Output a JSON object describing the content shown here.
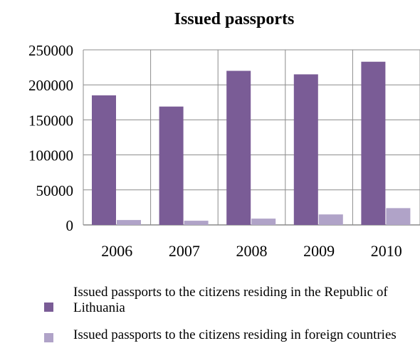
{
  "chart_data": {
    "type": "bar",
    "title": "Issued passports",
    "categories": [
      "2006",
      "2007",
      "2008",
      "2009",
      "2010"
    ],
    "series": [
      {
        "name": "Issued passports to the citizens residing in the Republic of Lithuania",
        "color": "#7a5c96",
        "values": [
          185000,
          169000,
          220000,
          215000,
          233000
        ]
      },
      {
        "name": "Issued passports to the citizens residing in foreign countries",
        "color": "#b0a3c8",
        "values": [
          7000,
          6000,
          9000,
          15000,
          24000
        ]
      }
    ],
    "y_ticks": [
      "0",
      "50000",
      "100000",
      "150000",
      "200000",
      "250000"
    ],
    "ylim": [
      0,
      250000
    ],
    "grid": true,
    "legend_position": "bottom"
  }
}
